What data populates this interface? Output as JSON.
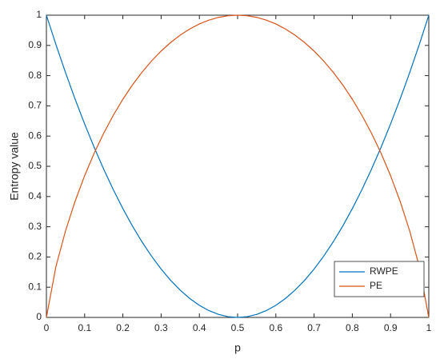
{
  "chart_data": {
    "type": "line",
    "x_label": "p",
    "y_label": "Entropy value",
    "x": [
      0,
      0.025,
      0.05,
      0.075,
      0.1,
      0.125,
      0.15,
      0.175,
      0.2,
      0.225,
      0.25,
      0.275,
      0.3,
      0.325,
      0.35,
      0.375,
      0.4,
      0.425,
      0.45,
      0.475,
      0.5,
      0.525,
      0.55,
      0.575,
      0.6,
      0.625,
      0.65,
      0.675,
      0.7,
      0.725,
      0.75,
      0.775,
      0.8,
      0.825,
      0.85,
      0.875,
      0.9,
      0.925,
      0.95,
      0.975,
      1
    ],
    "series": [
      {
        "name": "RWPE",
        "color": "#0072BD",
        "values": [
          1,
          0.9025,
          0.81,
          0.7225,
          0.64,
          0.5625,
          0.49,
          0.4225,
          0.36,
          0.3025,
          0.25,
          0.2025,
          0.16,
          0.1225,
          0.09,
          0.0625,
          0.04,
          0.0225,
          0.01,
          0.0025,
          0,
          0.0025,
          0.01,
          0.0225,
          0.04,
          0.0625,
          0.09,
          0.1225,
          0.16,
          0.2025,
          0.25,
          0.3025,
          0.36,
          0.4225,
          0.49,
          0.5625,
          0.64,
          0.7225,
          0.81,
          0.9025,
          1
        ]
      },
      {
        "name": "PE",
        "color": "#D95319",
        "values": [
          0,
          0.1687,
          0.2864,
          0.3843,
          0.469,
          0.5436,
          0.6098,
          0.669,
          0.7219,
          0.7692,
          0.8113,
          0.8486,
          0.8813,
          0.9097,
          0.9341,
          0.9544,
          0.971,
          0.9837,
          0.9928,
          0.9982,
          1,
          0.9982,
          0.9928,
          0.9837,
          0.971,
          0.9544,
          0.9341,
          0.9097,
          0.8813,
          0.8486,
          0.8113,
          0.7692,
          0.7219,
          0.669,
          0.6098,
          0.5436,
          0.469,
          0.3843,
          0.2864,
          0.1687,
          0
        ]
      }
    ],
    "xlim": [
      0,
      1
    ],
    "xticks": [
      0,
      0.1,
      0.2,
      0.3,
      0.4,
      0.5,
      0.6,
      0.7,
      0.8,
      0.9,
      1
    ],
    "ylim": [
      0,
      1
    ],
    "yticks": [
      0,
      0.1,
      0.2,
      0.3,
      0.4,
      0.5,
      0.6,
      0.7,
      0.8,
      0.9,
      1
    ],
    "grid": false,
    "legend": "lower right"
  }
}
